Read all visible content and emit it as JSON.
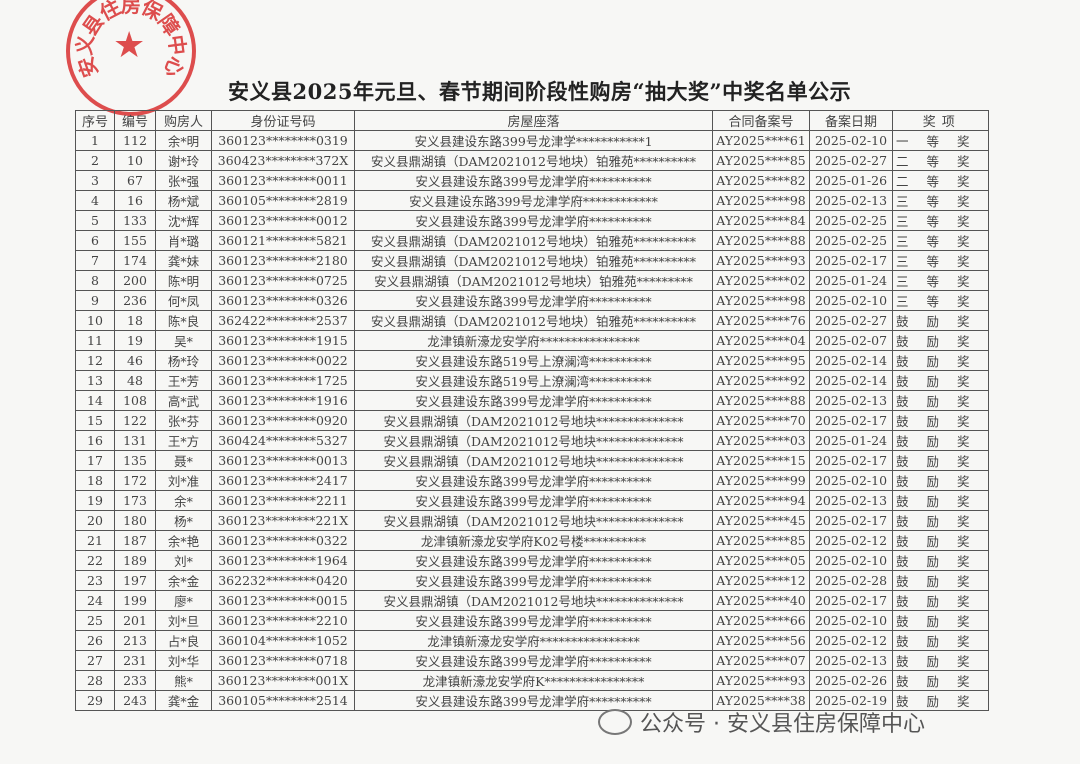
{
  "title": "安义县2025年元旦、春节期间阶段性购房“抽大奖”中奖名单公示",
  "stamp": {
    "text": "安义县住房保障中心",
    "color": "#d93030"
  },
  "headers": [
    "序号",
    "编号",
    "购房人",
    "身份证号码",
    "房屋座落",
    "合同备案号",
    "备案日期",
    "奖项"
  ],
  "rows": [
    [
      "1",
      "112",
      "余*明",
      "360123********0319",
      "安义县建设东路399号龙津学***********1",
      "AY2025****61",
      "2025-02-10",
      "一等奖"
    ],
    [
      "2",
      "10",
      "谢*玲",
      "360423********372X",
      "安义县鼎湖镇（DAM2021012号地块）铂雅苑**********",
      "AY2025****85",
      "2025-02-27",
      "二等奖"
    ],
    [
      "3",
      "67",
      "张*强",
      "360123********0011",
      "安义县建设东路399号龙津学府**********",
      "AY2025****82",
      "2025-01-26",
      "二等奖"
    ],
    [
      "4",
      "16",
      "杨*斌",
      "360105********2819",
      "安义县建设东路399号龙津学府************",
      "AY2025****98",
      "2025-02-13",
      "三等奖"
    ],
    [
      "5",
      "133",
      "沈*辉",
      "360123********0012",
      "安义县建设东路399号龙津学府**********",
      "AY2025****84",
      "2025-02-25",
      "三等奖"
    ],
    [
      "6",
      "155",
      "肖*璐",
      "360121********5821",
      "安义县鼎湖镇（DAM2021012号地块）铂雅苑**********",
      "AY2025****88",
      "2025-02-25",
      "三等奖"
    ],
    [
      "7",
      "174",
      "龚*妹",
      "360123********2180",
      "安义县鼎湖镇（DAM2021012号地块）铂雅苑**********",
      "AY2025****93",
      "2025-02-17",
      "三等奖"
    ],
    [
      "8",
      "200",
      "陈*明",
      "360123********0725",
      "安义县鼎湖镇（DAM2021012号地块）铂雅苑*********",
      "AY2025****02",
      "2025-01-24",
      "三等奖"
    ],
    [
      "9",
      "236",
      "何*凤",
      "360123********0326",
      "安义县建设东路399号龙津学府**********",
      "AY2025****98",
      "2025-02-10",
      "三等奖"
    ],
    [
      "10",
      "18",
      "陈*良",
      "362422********2537",
      "安义县鼎湖镇（DAM2021012号地块）铂雅苑**********",
      "AY2025****76",
      "2025-02-27",
      "鼓励奖"
    ],
    [
      "11",
      "19",
      "吴*",
      "360123********1915",
      "龙津镇新濠龙安学府****************",
      "AY2025****04",
      "2025-02-07",
      "鼓励奖"
    ],
    [
      "12",
      "46",
      "杨*玲",
      "360123********0022",
      "安义县建设东路519号上潦澜湾**********",
      "AY2025****95",
      "2025-02-14",
      "鼓励奖"
    ],
    [
      "13",
      "48",
      "王*芳",
      "360123********1725",
      "安义县建设东路519号上潦澜湾**********",
      "AY2025****92",
      "2025-02-14",
      "鼓励奖"
    ],
    [
      "14",
      "108",
      "高*武",
      "360123********1916",
      "安义县建设东路399号龙津学府**********",
      "AY2025****88",
      "2025-02-13",
      "鼓励奖"
    ],
    [
      "15",
      "122",
      "张*芬",
      "360123********0920",
      "安义县鼎湖镇（DAM2021012号地块**************",
      "AY2025****70",
      "2025-02-17",
      "鼓励奖"
    ],
    [
      "16",
      "131",
      "王*方",
      "360424********5327",
      "安义县鼎湖镇（DAM2021012号地块**************",
      "AY2025****03",
      "2025-01-24",
      "鼓励奖"
    ],
    [
      "17",
      "135",
      "聂*",
      "360123********0013",
      "安义县鼎湖镇（DAM2021012号地块**************",
      "AY2025****15",
      "2025-02-17",
      "鼓励奖"
    ],
    [
      "18",
      "172",
      "刘*准",
      "360123********2417",
      "安义县建设东路399号龙津学府**********",
      "AY2025****99",
      "2025-02-10",
      "鼓励奖"
    ],
    [
      "19",
      "173",
      "余*",
      "360123********2211",
      "安义县建设东路399号龙津学府**********",
      "AY2025****94",
      "2025-02-13",
      "鼓励奖"
    ],
    [
      "20",
      "180",
      "杨*",
      "360123********221X",
      "安义县鼎湖镇（DAM2021012号地块**************",
      "AY2025****45",
      "2025-02-17",
      "鼓励奖"
    ],
    [
      "21",
      "187",
      "余*艳",
      "360123********0322",
      "龙津镇新濠龙安学府K02号楼**********",
      "AY2025****85",
      "2025-02-12",
      "鼓励奖"
    ],
    [
      "22",
      "189",
      "刘*",
      "360123********1964",
      "安义县建设东路399号龙津学府**********",
      "AY2025****05",
      "2025-02-10",
      "鼓励奖"
    ],
    [
      "23",
      "197",
      "余*金",
      "362232********0420",
      "安义县建设东路399号龙津学府**********",
      "AY2025****12",
      "2025-02-28",
      "鼓励奖"
    ],
    [
      "24",
      "199",
      "廖*",
      "360123********0015",
      "安义县鼎湖镇（DAM2021012号地块**************",
      "AY2025****40",
      "2025-02-17",
      "鼓励奖"
    ],
    [
      "25",
      "201",
      "刘*旦",
      "360123********2210",
      "安义县建设东路399号龙津学府**********",
      "AY2025****66",
      "2025-02-10",
      "鼓励奖"
    ],
    [
      "26",
      "213",
      "占*良",
      "360104********1052",
      "龙津镇新濠龙安学府****************",
      "AY2025****56",
      "2025-02-12",
      "鼓励奖"
    ],
    [
      "27",
      "231",
      "刘*华",
      "360123********0718",
      "安义县建设东路399号龙津学府**********",
      "AY2025****07",
      "2025-02-13",
      "鼓励奖"
    ],
    [
      "28",
      "233",
      "熊*",
      "360123********001X",
      "龙津镇新濠龙安学府K****************",
      "AY2025****93",
      "2025-02-26",
      "鼓励奖"
    ],
    [
      "29",
      "243",
      "龚*金",
      "360105********2514",
      "安义县建设东路399号龙津学府**********",
      "AY2025****38",
      "2025-02-19",
      "鼓励奖"
    ]
  ],
  "footer": {
    "icon": "wechat-icon",
    "text": "公众号 · 安义县住房保障中心"
  }
}
